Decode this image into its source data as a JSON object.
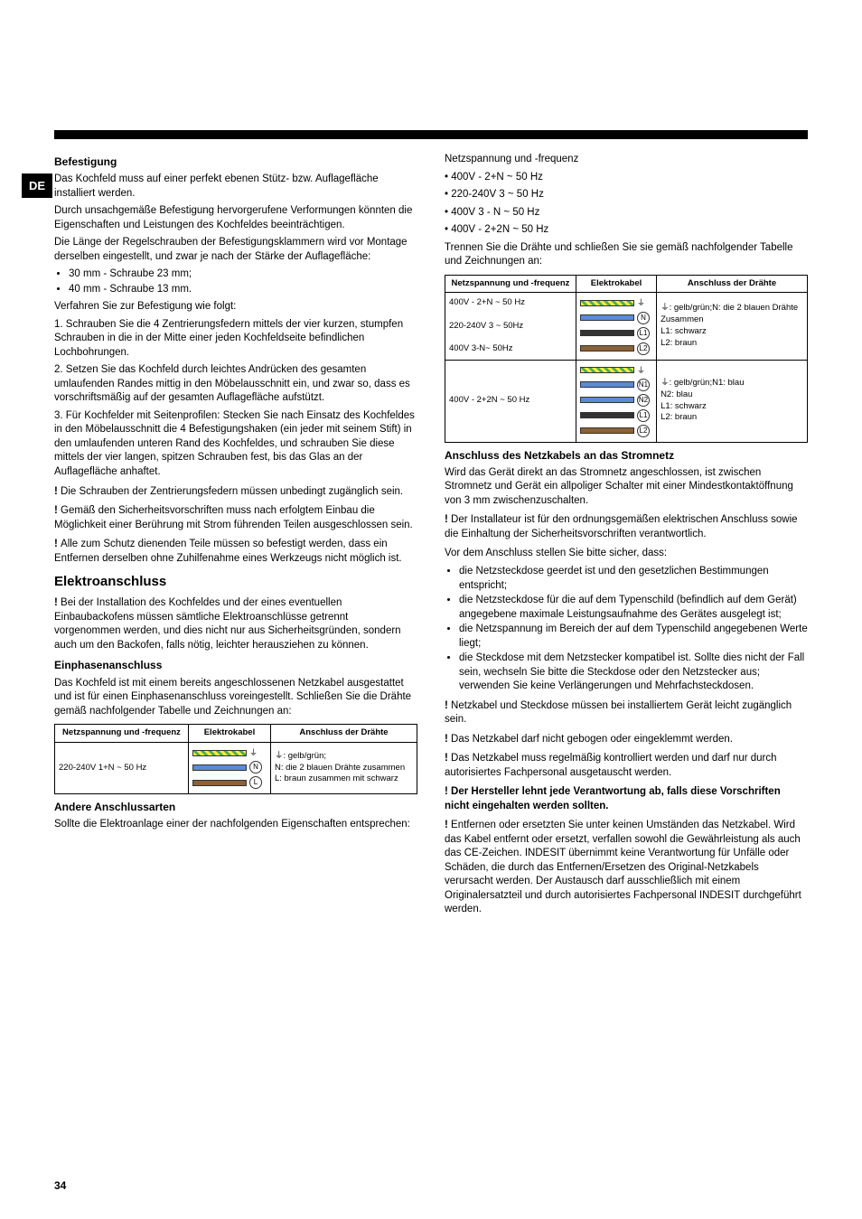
{
  "countryBadge": "DE",
  "pageNumber": "34",
  "left": {
    "h1": "Befestigung",
    "p1": "Das Kochfeld muss auf einer perfekt ebenen Stütz- bzw. Auflagefläche installiert werden.",
    "p2": "Durch unsachgemäße Befestigung hervorgerufene Verformungen könnten die Eigenschaften und Leistungen des Kochfeldes beeinträchtigen.",
    "p3": "Die Länge der Regelschrauben der Befestigungsklammern wird vor Montage derselben eingestellt, und zwar je nach der Stärke der Auflagefläche:",
    "li1": "30 mm - Schraube 23 mm;",
    "li2": "40 mm - Schraube 13 mm.",
    "p4": "Verfahren Sie zur Befestigung wie folgt:",
    "p5": "1. Schrauben Sie die 4 Zentrierungsfedern mittels der vier kurzen, stumpfen Schrauben in die in der Mitte einer jeden Kochfeldseite befindlichen Lochbohrungen.",
    "p6": "2. Setzen Sie das Kochfeld durch leichtes Andrücken des gesamten umlaufenden Randes mittig in den Möbelausschnitt ein, und zwar so, dass es vorschriftsmäßig auf der gesamten Auflagefläche aufstützt.",
    "p7": "3. Für Kochfelder mit Seitenprofilen: Stecken Sie nach Einsatz des Kochfeldes in den Möbelausschnitt die 4 Befestigungshaken (ein jeder mit seinem Stift) in den umlaufenden unteren Rand des Kochfeldes, und schrauben Sie diese mittels der vier langen, spitzen Schrauben fest, bis das Glas an der Auflagefläche anhaftet.",
    "w1": "Die Schrauben der Zentrierungsfedern müssen unbedingt zugänglich sein.",
    "w2": "Gemäß den Sicherheitsvorschriften muss nach erfolgtem Einbau die Möglichkeit einer Berührung mit Strom führenden Teilen ausgeschlossen sein.",
    "w3": "Alle zum Schutz dienenden Teile müssen so befestigt werden, dass ein Entfernen derselben ohne Zuhilfenahme eines Werkzeugs nicht möglich ist.",
    "h2": "Elektroanschluss",
    "w4": "Bei der Installation des Kochfeldes und der eines eventuellen Einbaubackofens müssen sämtliche Elektroanschlüsse getrennt vorgenommen werden, und dies nicht nur aus Sicherheitsgründen, sondern auch um den Backofen, falls nötig, leichter herausziehen zu können.",
    "h3": "Einphasenanschluss",
    "p8": "Das Kochfeld ist mit einem bereits angeschlossenen Netzkabel ausgestattet und ist für einen Einphasenanschluss voreingestellt. Schließen Sie die Drähte gemäß nachfolgender Tabelle und Zeichnungen an:",
    "table1": {
      "th1": "Netzspannung und -frequenz",
      "th2": "Elektrokabel",
      "th3": "Anschluss der Drähte",
      "r1c1": "220-240V 1+N ~ 50 Hz",
      "r1c3a": "⏚: gelb/grün;",
      "r1c3b": "N: die 2 blauen Drähte zusammen",
      "r1c3c": "L: braun zusammen mit schwarz"
    },
    "h4": "Andere Anschlussarten",
    "p9": "Sollte die Elektroanlage einer der nachfolgenden Eigenschaften entsprechen:"
  },
  "right": {
    "p1": "Netzspannung und -frequenz",
    "li1": "400V - 2+N ~ 50 Hz",
    "li2": "220-240V 3 ~ 50 Hz",
    "li3": "400V 3 - N ~ 50 Hz",
    "li4": "400V - 2+2N ~ 50 Hz",
    "p2": "Trennen Sie die Drähte und schließen Sie sie gemäß nachfolgender Tabelle und Zeichnungen an:",
    "table2": {
      "th1": "Netzspannung und -frequenz",
      "th2": "Elektrokabel",
      "th3": "Anschluss der Drähte",
      "r1c1a": "400V - 2+N ~ 50 Hz",
      "r1c1b": "220-240V 3 ~ 50Hz",
      "r1c1c": "400V 3-N~ 50Hz",
      "r1c3a": "⏚: gelb/grün;N: die 2 blauen Drähte",
      "r1c3b": "Zusammen",
      "r1c3c": "L1: schwarz",
      "r1c3d": "L2: braun",
      "r2c1": "400V - 2+2N ~ 50 Hz",
      "r2c3a": "⏚: gelb/grün;N1: blau",
      "r2c3b": "N2: blau",
      "r2c3c": "L1: schwarz",
      "r2c3d": "L2: braun"
    },
    "h3": "Anschluss des Netzkabels an das Stromnetz",
    "p3": "Wird das Gerät direkt an das Stromnetz angeschlossen, ist zwischen Stromnetz und Gerät ein allpoliger Schalter mit einer Mindestkontaktöffnung von 3 mm zwischenzuschalten.",
    "w1": "Der Installateur ist für den ordnungsgemäßen elektrischen Anschluss sowie die Einhaltung der Sicherheitsvorschriften verantwortlich.",
    "p4": "Vor dem Anschluss stellen Sie bitte sicher, dass:",
    "li5": "die Netzsteckdose geerdet ist und den gesetzlichen Bestimmungen entspricht;",
    "li6": "die Netzsteckdose für die auf dem Typenschild (befindlich auf dem Gerät) angegebene maximale Leistungsaufnahme des Gerätes ausgelegt ist;",
    "li7": "die Netzspannung im Bereich der auf dem Typenschild angegebenen Werte liegt;",
    "li8": "die Steckdose mit dem Netzstecker kompatibel ist. Sollte dies nicht der Fall sein, wechseln Sie bitte die Steckdose oder den Netzstecker aus; verwenden Sie keine Verlängerungen und Mehrfachsteckdosen.",
    "w2": "Netzkabel und Steckdose müssen bei installiertem Gerät leicht zugänglich sein.",
    "w3": "Das Netzkabel darf nicht gebogen oder eingeklemmt werden.",
    "w4": "Das Netzkabel muss regelmäßig kontrolliert werden und darf nur durch autorisiertes Fachpersonal ausgetauscht werden.",
    "wb": "Der Hersteller lehnt jede Verantwortung ab, falls diese Vorschriften nicht eingehalten werden sollten.",
    "w5": "Entfernen oder ersetzten Sie unter keinen Umständen das Netzkabel. Wird das Kabel entfernt oder ersetzt, verfallen sowohl die Gewährleistung als auch das CE-Zeichen. INDESIT übernimmt keine Verantwortung für Unfälle oder Schäden, die durch das Entfernen/Ersetzen des Original-Netzkabels verursacht werden. Der Austausch darf ausschließlich mit einem Originalersatzteil und durch autorisiertes Fachpersonal INDESIT durchgeführt werden."
  },
  "labels": {
    "N": "N",
    "L": "L",
    "N1": "N1",
    "N2": "N2",
    "L1": "L1",
    "L2": "L2"
  }
}
